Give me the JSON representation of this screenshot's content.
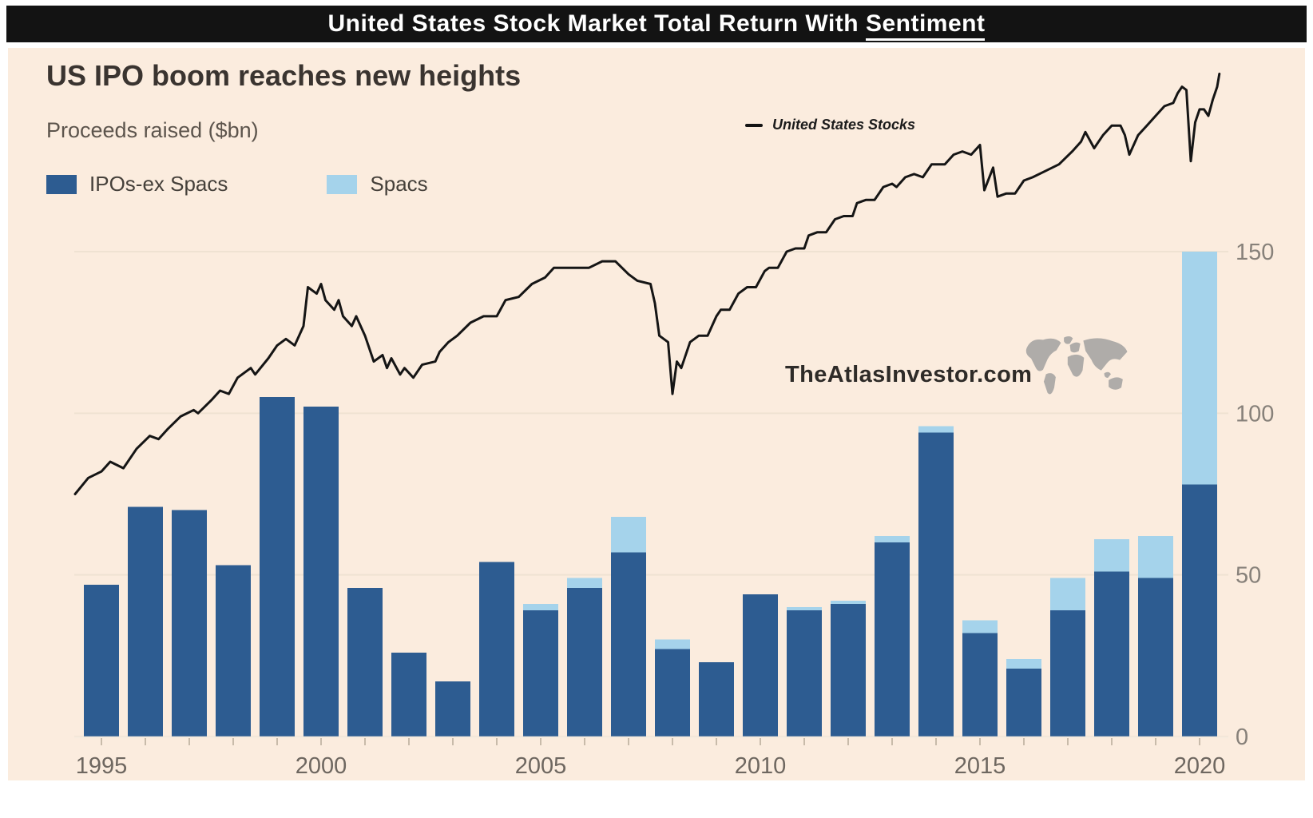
{
  "header": {
    "prefix": "United States Stock Market Total Return With ",
    "underlined": "Sentiment"
  },
  "chart": {
    "title": "US IPO boom reaches new heights",
    "subtitle": "Proceeds raised ($bn)",
    "legend": {
      "ipos": {
        "label": "IPOs-ex Spacs"
      },
      "spacs": {
        "label": "Spacs"
      }
    },
    "line_legend": {
      "label": "United States Stocks"
    },
    "watermark": "TheAtlasInvestor.com",
    "y_axis": {
      "side": "right",
      "ticks": [
        0,
        50,
        100,
        150
      ]
    },
    "x_axis": {
      "labeled_years": [
        1995,
        2000,
        2005,
        2010,
        2015,
        2020
      ]
    }
  },
  "colors": {
    "dark_blue": "#2d5c91",
    "light_blue": "#a5d3eb",
    "line": "#151515",
    "panel_bg": "#fbecde",
    "grid": "#efe2d2",
    "baseline": "#f6ebde",
    "tick": "#c8bbaa",
    "header_bg": "#131313",
    "header_text": "#ffffff"
  },
  "chart_data": {
    "type": "bar",
    "title": "US IPO boom reaches new heights",
    "ylabel": "Proceeds raised ($bn)",
    "ylim": [
      0,
      150
    ],
    "y_ticks": [
      0,
      50,
      100,
      150
    ],
    "grid": "horizontal",
    "legend_position": "top-left",
    "categories": [
      1995,
      1996,
      1997,
      1998,
      1999,
      2000,
      2001,
      2002,
      2003,
      2004,
      2005,
      2006,
      2007,
      2008,
      2009,
      2010,
      2011,
      2012,
      2013,
      2014,
      2015,
      2016,
      2017,
      2018,
      2019,
      2020
    ],
    "series": [
      {
        "name": "IPOs-ex Spacs",
        "stack": "proceeds",
        "values": [
          47,
          71,
          70,
          53,
          105,
          102,
          46,
          26,
          17,
          54,
          39,
          46,
          57,
          27,
          23,
          44,
          39,
          41,
          60,
          94,
          32,
          21,
          39,
          51,
          49,
          78
        ]
      },
      {
        "name": "Spacs",
        "stack": "proceeds",
        "values": [
          0,
          0,
          0,
          0,
          0,
          0,
          0,
          0,
          0,
          0,
          2,
          3,
          11,
          3,
          0,
          0,
          1,
          1,
          2,
          2,
          4,
          3,
          10,
          10,
          13,
          72
        ]
      }
    ],
    "line_series": {
      "name": "United States Stocks",
      "type": "line",
      "note": "index line, no visible axis; values estimated on the right-axis pixel scale",
      "points": [
        [
          1994.4,
          75
        ],
        [
          1994.7,
          80
        ],
        [
          1995.0,
          82
        ],
        [
          1995.2,
          85
        ],
        [
          1995.5,
          83
        ],
        [
          1995.8,
          89
        ],
        [
          1996.1,
          93
        ],
        [
          1996.3,
          92
        ],
        [
          1996.5,
          95
        ],
        [
          1996.8,
          99
        ],
        [
          1997.1,
          101
        ],
        [
          1997.2,
          100
        ],
        [
          1997.5,
          104
        ],
        [
          1997.7,
          107
        ],
        [
          1997.9,
          106
        ],
        [
          1998.1,
          111
        ],
        [
          1998.4,
          114
        ],
        [
          1998.5,
          112
        ],
        [
          1998.8,
          117
        ],
        [
          1999.0,
          121
        ],
        [
          1999.2,
          123
        ],
        [
          1999.4,
          121
        ],
        [
          1999.6,
          127
        ],
        [
          1999.7,
          139
        ],
        [
          1999.9,
          137
        ],
        [
          2000.0,
          140
        ],
        [
          2000.1,
          135
        ],
        [
          2000.3,
          132
        ],
        [
          2000.4,
          135
        ],
        [
          2000.5,
          130
        ],
        [
          2000.7,
          127
        ],
        [
          2000.8,
          130
        ],
        [
          2001.0,
          124
        ],
        [
          2001.1,
          120
        ],
        [
          2001.2,
          116
        ],
        [
          2001.4,
          118
        ],
        [
          2001.5,
          114
        ],
        [
          2001.6,
          117
        ],
        [
          2001.8,
          112
        ],
        [
          2001.9,
          114
        ],
        [
          2002.1,
          111
        ],
        [
          2002.3,
          115
        ],
        [
          2002.6,
          116
        ],
        [
          2002.7,
          119
        ],
        [
          2002.9,
          122
        ],
        [
          2003.1,
          124
        ],
        [
          2003.4,
          128
        ],
        [
          2003.7,
          130
        ],
        [
          2004.0,
          130
        ],
        [
          2004.2,
          135
        ],
        [
          2004.5,
          136
        ],
        [
          2004.8,
          140
        ],
        [
          2005.1,
          142
        ],
        [
          2005.3,
          145
        ],
        [
          2005.6,
          145
        ],
        [
          2005.9,
          145
        ],
        [
          2006.1,
          145
        ],
        [
          2006.4,
          147
        ],
        [
          2006.7,
          147
        ],
        [
          2007.0,
          143
        ],
        [
          2007.2,
          141
        ],
        [
          2007.5,
          140
        ],
        [
          2007.6,
          134
        ],
        [
          2007.7,
          124
        ],
        [
          2007.9,
          122
        ],
        [
          2008.0,
          106
        ],
        [
          2008.1,
          116
        ],
        [
          2008.2,
          114
        ],
        [
          2008.4,
          122
        ],
        [
          2008.6,
          124
        ],
        [
          2008.8,
          124
        ],
        [
          2009.0,
          130
        ],
        [
          2009.1,
          132
        ],
        [
          2009.3,
          132
        ],
        [
          2009.5,
          137
        ],
        [
          2009.7,
          139
        ],
        [
          2009.9,
          139
        ],
        [
          2010.1,
          144
        ],
        [
          2010.2,
          145
        ],
        [
          2010.4,
          145
        ],
        [
          2010.6,
          150
        ],
        [
          2010.8,
          151
        ],
        [
          2011.0,
          151
        ],
        [
          2011.1,
          155
        ],
        [
          2011.3,
          156
        ],
        [
          2011.5,
          156
        ],
        [
          2011.7,
          160
        ],
        [
          2011.9,
          161
        ],
        [
          2012.1,
          161
        ],
        [
          2012.2,
          165
        ],
        [
          2012.4,
          166
        ],
        [
          2012.6,
          166
        ],
        [
          2012.8,
          170
        ],
        [
          2013.0,
          171
        ],
        [
          2013.1,
          170
        ],
        [
          2013.3,
          173
        ],
        [
          2013.5,
          174
        ],
        [
          2013.7,
          173
        ],
        [
          2013.9,
          177
        ],
        [
          2014.1,
          177
        ],
        [
          2014.2,
          177
        ],
        [
          2014.4,
          180
        ],
        [
          2014.6,
          181
        ],
        [
          2014.8,
          180
        ],
        [
          2015.0,
          183
        ],
        [
          2015.1,
          169
        ],
        [
          2015.3,
          176
        ],
        [
          2015.4,
          167
        ],
        [
          2015.6,
          168
        ],
        [
          2015.8,
          168
        ],
        [
          2016.0,
          172
        ],
        [
          2016.2,
          173
        ],
        [
          2016.5,
          175
        ],
        [
          2016.8,
          177
        ],
        [
          2017.1,
          181
        ],
        [
          2017.3,
          184
        ],
        [
          2017.4,
          187
        ],
        [
          2017.6,
          182
        ],
        [
          2017.8,
          186
        ],
        [
          2018.0,
          189
        ],
        [
          2018.2,
          189
        ],
        [
          2018.3,
          186
        ],
        [
          2018.4,
          180
        ],
        [
          2018.6,
          186
        ],
        [
          2018.8,
          189
        ],
        [
          2019.0,
          192
        ],
        [
          2019.2,
          195
        ],
        [
          2019.4,
          196
        ],
        [
          2019.5,
          199
        ],
        [
          2019.6,
          201
        ],
        [
          2019.7,
          200
        ],
        [
          2019.8,
          178
        ],
        [
          2019.9,
          190
        ],
        [
          2020.0,
          194
        ],
        [
          2020.1,
          194
        ],
        [
          2020.2,
          192
        ],
        [
          2020.3,
          197
        ],
        [
          2020.4,
          201
        ],
        [
          2020.45,
          205
        ]
      ]
    }
  }
}
